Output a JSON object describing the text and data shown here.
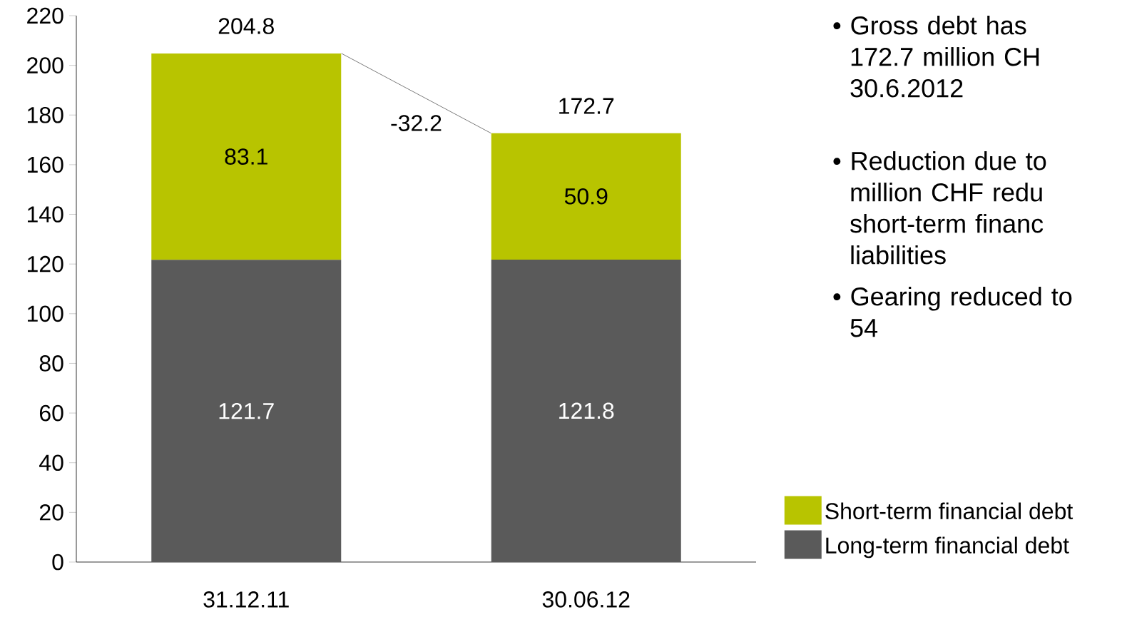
{
  "chart_data": {
    "type": "bar",
    "stacked": true,
    "categories": [
      "31.12.11",
      "30.06.12"
    ],
    "series": [
      {
        "name": "Long-term financial debt",
        "color": "#5a5a5a",
        "values": [
          121.7,
          121.8
        ]
      },
      {
        "name": "Short-term financial debt",
        "color": "#b8c400",
        "values": [
          83.1,
          50.9
        ]
      }
    ],
    "totals": [
      "204.8",
      "172.7"
    ],
    "data_labels": true,
    "ylim": [
      0,
      220
    ],
    "yticks": [
      0,
      20,
      40,
      60,
      80,
      100,
      120,
      140,
      160,
      180,
      200,
      220
    ],
    "legend": "bottom right",
    "annotations": [
      "-32.2",
      "• Gross debt has 172.7 million CH 30.6.2012",
      "• Reduction due to million CHF redu short-term financ liabilities",
      "• Gearing reduced to 54"
    ]
  }
}
